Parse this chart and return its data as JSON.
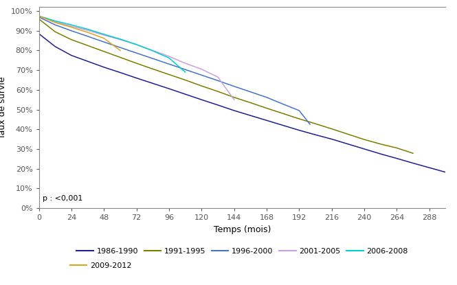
{
  "xlabel": "Temps (mois)",
  "ylabel": "Taux de survie",
  "xlim": [
    0,
    300
  ],
  "ylim": [
    0,
    1.02
  ],
  "xticks": [
    0,
    24,
    48,
    72,
    96,
    120,
    144,
    168,
    192,
    216,
    240,
    264,
    288
  ],
  "yticks": [
    0.0,
    0.1,
    0.2,
    0.3,
    0.4,
    0.5,
    0.6,
    0.7,
    0.8,
    0.9,
    1.0
  ],
  "p_text": "p : <0,001",
  "series": [
    {
      "label": "1986-1990",
      "color": "#1e1e8c",
      "x": [
        0,
        12,
        24,
        36,
        48,
        60,
        72,
        84,
        96,
        108,
        120,
        132,
        144,
        156,
        168,
        180,
        192,
        204,
        216,
        228,
        240,
        252,
        264,
        276,
        288,
        300
      ],
      "y": [
        0.885,
        0.82,
        0.775,
        0.745,
        0.715,
        0.688,
        0.66,
        0.633,
        0.606,
        0.578,
        0.55,
        0.523,
        0.495,
        0.47,
        0.445,
        0.42,
        0.395,
        0.372,
        0.35,
        0.325,
        0.3,
        0.275,
        0.252,
        0.228,
        0.205,
        0.182
      ]
    },
    {
      "label": "1991-1995",
      "color": "#7b7b00",
      "x": [
        0,
        12,
        24,
        36,
        48,
        60,
        72,
        84,
        96,
        108,
        120,
        132,
        144,
        156,
        168,
        180,
        192,
        204,
        216,
        228,
        240,
        252,
        264,
        276
      ],
      "y": [
        0.96,
        0.895,
        0.855,
        0.825,
        0.795,
        0.765,
        0.735,
        0.706,
        0.678,
        0.65,
        0.62,
        0.592,
        0.562,
        0.535,
        0.507,
        0.48,
        0.453,
        0.428,
        0.402,
        0.375,
        0.348,
        0.325,
        0.305,
        0.278
      ]
    },
    {
      "label": "1996-2000",
      "color": "#4472c4",
      "x": [
        0,
        12,
        24,
        36,
        48,
        60,
        72,
        84,
        96,
        108,
        120,
        132,
        144,
        156,
        168,
        180,
        192,
        200
      ],
      "y": [
        0.97,
        0.93,
        0.9,
        0.872,
        0.843,
        0.815,
        0.787,
        0.759,
        0.731,
        0.703,
        0.675,
        0.647,
        0.618,
        0.59,
        0.562,
        0.528,
        0.495,
        0.425
      ]
    },
    {
      "label": "2001-2005",
      "color": "#c9a0dc",
      "x": [
        0,
        12,
        24,
        36,
        48,
        60,
        72,
        84,
        96,
        108,
        120,
        132,
        144
      ],
      "y": [
        0.975,
        0.945,
        0.923,
        0.902,
        0.878,
        0.855,
        0.83,
        0.8,
        0.77,
        0.735,
        0.705,
        0.665,
        0.55
      ]
    },
    {
      "label": "2006-2008",
      "color": "#00cccc",
      "x": [
        0,
        12,
        24,
        36,
        48,
        60,
        72,
        84,
        96,
        108
      ],
      "y": [
        0.975,
        0.95,
        0.93,
        0.908,
        0.882,
        0.858,
        0.83,
        0.798,
        0.762,
        0.69
      ]
    },
    {
      "label": "2009-2012",
      "color": "#daa520",
      "x": [
        0,
        12,
        24,
        36,
        48,
        60
      ],
      "y": [
        0.975,
        0.942,
        0.918,
        0.892,
        0.862,
        0.8
      ]
    }
  ]
}
